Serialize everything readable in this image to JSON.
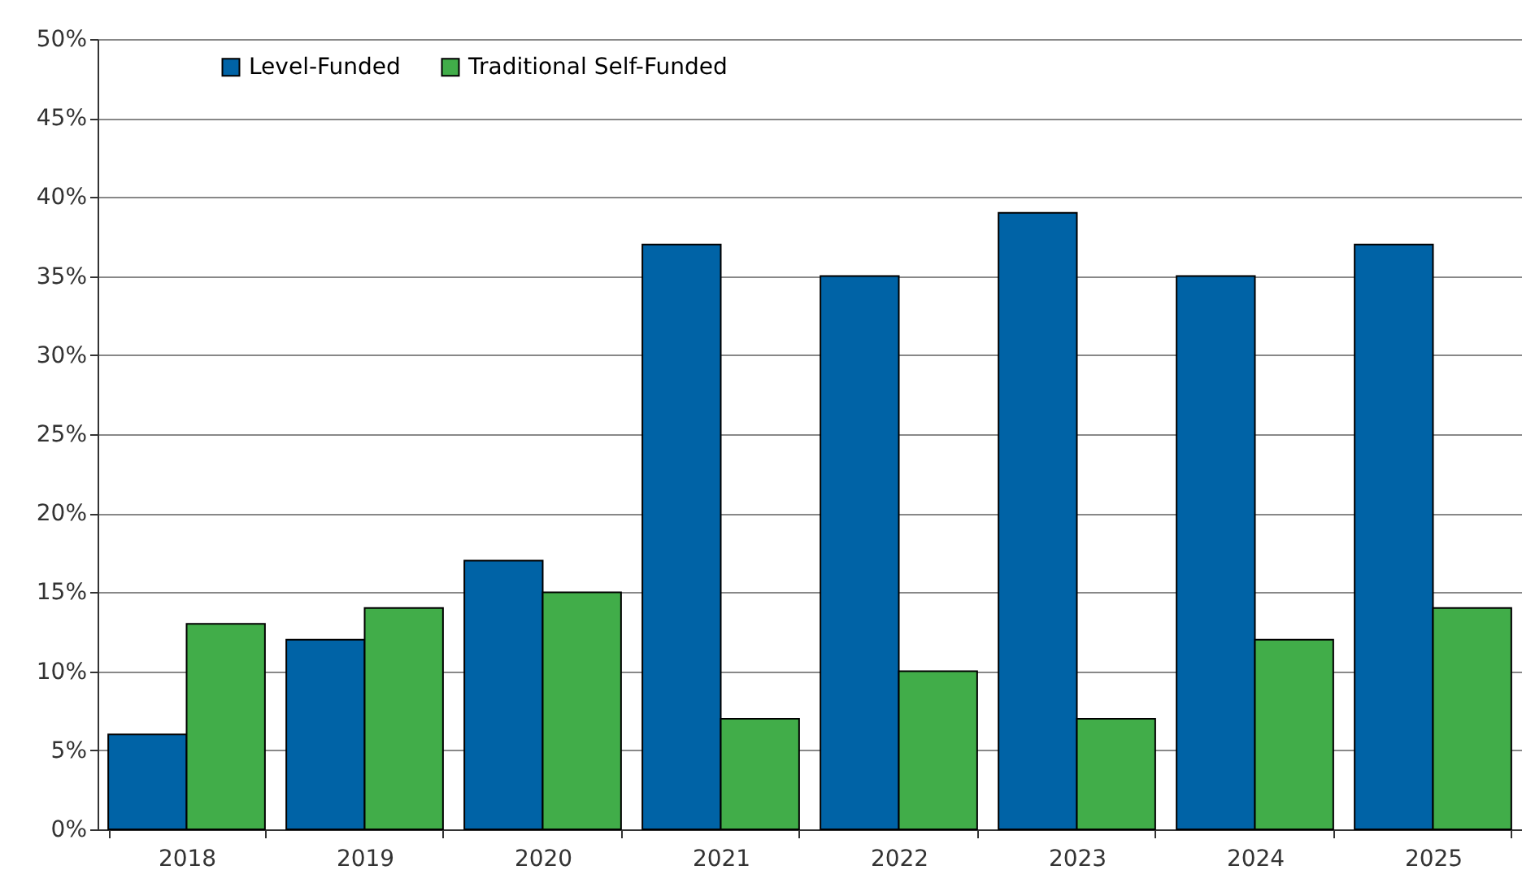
{
  "chart_data": {
    "type": "bar",
    "categories": [
      "2018",
      "2019",
      "2020",
      "2021",
      "2022",
      "2023",
      "2024",
      "2025"
    ],
    "series": [
      {
        "name": "Level-Funded",
        "color": "#0063a6",
        "values": [
          6,
          12,
          17,
          37,
          35,
          39,
          35,
          37
        ]
      },
      {
        "name": "Traditional Self-Funded",
        "color": "#41ad49",
        "values": [
          13,
          14,
          15,
          7,
          10,
          7,
          12,
          14
        ]
      }
    ],
    "ylim": [
      0,
      50
    ],
    "yticks": [
      {
        "value": 0,
        "label": "0%"
      },
      {
        "value": 5,
        "label": "5%"
      },
      {
        "value": 10,
        "label": "10%"
      },
      {
        "value": 15,
        "label": "15%"
      },
      {
        "value": 20,
        "label": "20%"
      },
      {
        "value": 25,
        "label": "25%"
      },
      {
        "value": 30,
        "label": "30%"
      },
      {
        "value": 35,
        "label": "35%"
      },
      {
        "value": 40,
        "label": "40%"
      },
      {
        "value": 45,
        "label": "45%"
      },
      {
        "value": 50,
        "label": "50%"
      }
    ],
    "grid": "y",
    "legend": "top left"
  }
}
